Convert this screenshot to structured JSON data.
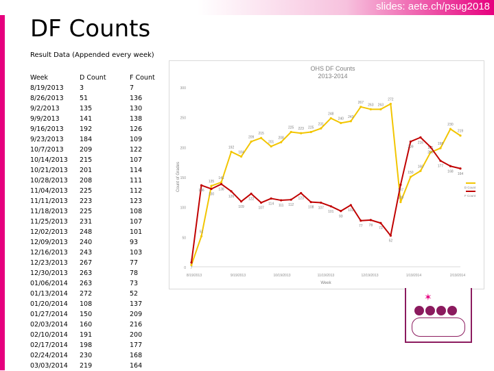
{
  "header": {
    "url": "slides: aete.ch/psug2018",
    "title": "DF Counts",
    "subtitle": "Result Data (Appended every week)"
  },
  "table": {
    "columns": [
      "Week",
      "D Count",
      "F Count"
    ],
    "rows": [
      [
        "8/19/2013",
        "3",
        "7"
      ],
      [
        "8/26/2013",
        "51",
        "136"
      ],
      [
        "9/2/2013",
        "135",
        "130"
      ],
      [
        "9/9/2013",
        "141",
        "138"
      ],
      [
        "9/16/2013",
        "192",
        "126"
      ],
      [
        "9/23/2013",
        "184",
        "109"
      ],
      [
        "10/7/2013",
        "209",
        "122"
      ],
      [
        "10/14/2013",
        "215",
        "107"
      ],
      [
        "10/21/2013",
        "201",
        "114"
      ],
      [
        "10/28/2013",
        "208",
        "111"
      ],
      [
        "11/04/2013",
        "225",
        "112"
      ],
      [
        "11/11/2013",
        "223",
        "123"
      ],
      [
        "11/18/2013",
        "225",
        "108"
      ],
      [
        "11/25/2013",
        "231",
        "107"
      ],
      [
        "12/02/2013",
        "248",
        "101"
      ],
      [
        "12/09/2013",
        "240",
        "93"
      ],
      [
        "12/16/2013",
        "243",
        "103"
      ],
      [
        "12/23/2013",
        "267",
        "77"
      ],
      [
        "12/30/2013",
        "263",
        "78"
      ],
      [
        "01/06/2014",
        "263",
        "73"
      ],
      [
        "01/13/2014",
        "272",
        "52"
      ],
      [
        "01/20/2014",
        "108",
        "137"
      ],
      [
        "01/27/2014",
        "150",
        "209"
      ],
      [
        "02/03/2014",
        "160",
        "216"
      ],
      [
        "02/10/2014",
        "191",
        "200"
      ],
      [
        "02/17/2014",
        "198",
        "177"
      ],
      [
        "02/24/2014",
        "230",
        "168"
      ],
      [
        "03/03/2014",
        "219",
        "164"
      ]
    ]
  },
  "chart_data": {
    "type": "line",
    "title": "OHS DF Counts",
    "subtitle": "2013-2014",
    "xlabel": "Week",
    "ylabel": "Count of Grades",
    "ylim": [
      0,
      300
    ],
    "yticks": [
      "0",
      "50",
      "100",
      "150",
      "200",
      "250",
      "300"
    ],
    "xtick_labels": [
      "8/19/2013",
      "9/19/2013",
      "10/19/2013",
      "11/19/2013",
      "12/19/2013",
      "1/19/2014",
      "2/19/2014"
    ],
    "x": [
      "8/19/2013",
      "8/26/2013",
      "9/2/2013",
      "9/9/2013",
      "9/16/2013",
      "9/23/2013",
      "10/7/2013",
      "10/14/2013",
      "10/21/2013",
      "10/28/2013",
      "11/04/2013",
      "11/11/2013",
      "11/18/2013",
      "11/25/2013",
      "12/02/2013",
      "12/09/2013",
      "12/16/2013",
      "12/23/2013",
      "12/30/2013",
      "01/06/2014",
      "01/13/2014",
      "01/20/2014",
      "01/27/2014",
      "02/03/2014",
      "02/10/2014",
      "02/17/2014",
      "02/24/2014",
      "03/03/2014"
    ],
    "series": [
      {
        "name": "D Count",
        "color": "#f2c500",
        "values": [
          3,
          51,
          135,
          141,
          192,
          184,
          209,
          215,
          201,
          208,
          225,
          223,
          225,
          231,
          248,
          240,
          243,
          267,
          263,
          263,
          272,
          108,
          150,
          160,
          191,
          198,
          230,
          219
        ]
      },
      {
        "name": "F Count",
        "color": "#c00000",
        "values": [
          7,
          136,
          130,
          138,
          126,
          109,
          122,
          107,
          114,
          111,
          112,
          123,
          108,
          107,
          101,
          93,
          103,
          77,
          78,
          73,
          52,
          137,
          209,
          216,
          200,
          177,
          168,
          164
        ]
      }
    ],
    "legend": "right"
  }
}
